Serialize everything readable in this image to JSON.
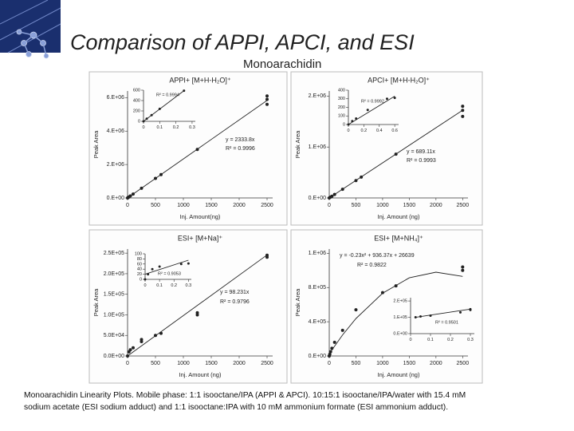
{
  "slide_title": "Comparison of APPI, APCI, and ESI",
  "subtitle": "Monoarachidin",
  "caption": [
    "Monoarachidin Linearity Plots. Mobile phase: 1:1 isooctane/IPA (APPI & APCI). 10:15:1 isooctane/IPA/water with 15.4 mM",
    "sodium acetate (ESI sodium adduct) and 1:1 isooctane:IPA with 10 mM ammonium formate (ESI ammonium adduct)."
  ],
  "chart_data": [
    {
      "type": "scatter",
      "title": "APPI+ [M+H-H₂O]⁺",
      "xlabel": "Inj. Amount(ng)",
      "ylabel": "Peak Area",
      "xlim": [
        0,
        2600
      ],
      "ylim": [
        0,
        6400000
      ],
      "xticks": [
        0,
        500,
        1000,
        1500,
        2000,
        2500
      ],
      "yticks": [
        {
          "value": 0,
          "label": "0.E+00"
        },
        {
          "value": 2000000,
          "label": "2.E+06"
        },
        {
          "value": 4000000,
          "label": "4.E+06"
        },
        {
          "value": 6000000,
          "label": "6.E+06"
        }
      ],
      "annotations": [
        "y = 2333.8x",
        "R² = 0.9996"
      ],
      "series": [
        {
          "style": "points",
          "color": "#222222",
          "x": [
            0,
            10,
            25,
            50,
            100,
            250,
            500,
            600,
            1250,
            2500,
            2500,
            2500
          ],
          "values": [
            0,
            23000,
            58000,
            120000,
            230000,
            580000,
            1170000,
            1400000,
            2900000,
            5600000,
            5900000,
            6100000
          ]
        },
        {
          "style": "line",
          "color": "#222222",
          "x": [
            0,
            2500
          ],
          "values": [
            0,
            5834500
          ]
        }
      ],
      "inset": {
        "xlim": [
          0,
          0.32
        ],
        "ylim": [
          0,
          600
        ],
        "xticks": [
          0,
          0.1,
          0.2,
          0.3
        ],
        "yticks": [
          0,
          200,
          400,
          600
        ],
        "annotations": [
          "R² = 0.9994"
        ],
        "series": [
          {
            "style": "points",
            "color": "#222222",
            "x": [
              0,
              0.02,
              0.05,
              0.1,
              0.25
            ],
            "values": [
              0,
              50,
              120,
              240,
              590
            ]
          },
          {
            "style": "line",
            "color": "#222222",
            "x": [
              0,
              0.25
            ],
            "values": [
              0,
              590
            ]
          }
        ]
      }
    },
    {
      "type": "scatter",
      "title": "APCI+ [M+H-H₂O]⁺",
      "xlabel": "Inj. Amount (ng)",
      "ylabel": "Peak Area",
      "xlim": [
        0,
        2600
      ],
      "ylim": [
        0,
        2100000
      ],
      "xticks": [
        0,
        500,
        1000,
        1500,
        2000,
        2500
      ],
      "yticks": [
        {
          "value": 0,
          "label": "0.E+00"
        },
        {
          "value": 1000000,
          "label": "1.E+06"
        },
        {
          "value": 2000000,
          "label": "2.E+06"
        }
      ],
      "annotations": [
        "y = 689.11x",
        "R² = 0.9993"
      ],
      "series": [
        {
          "style": "points",
          "color": "#222222",
          "x": [
            0,
            25,
            50,
            100,
            250,
            500,
            600,
            1250,
            2500,
            2500,
            2500
          ],
          "values": [
            0,
            17000,
            34000,
            69000,
            170000,
            340000,
            410000,
            860000,
            1600000,
            1720000,
            1800000
          ]
        },
        {
          "style": "line",
          "color": "#222222",
          "x": [
            0,
            2500
          ],
          "values": [
            0,
            1722775
          ]
        }
      ],
      "inset": {
        "xlim": [
          0,
          0.65
        ],
        "ylim": [
          0,
          400
        ],
        "xticks": [
          0,
          0.2,
          0.4,
          0.6
        ],
        "yticks": [
          0,
          100,
          200,
          300,
          400
        ],
        "annotations": [
          "R² = 0.9992"
        ],
        "series": [
          {
            "style": "points",
            "color": "#222222",
            "x": [
              0,
              0.05,
              0.1,
              0.25,
              0.5,
              0.6
            ],
            "values": [
              0,
              40,
              70,
              170,
              300,
              310
            ]
          },
          {
            "style": "line",
            "color": "#222222",
            "x": [
              0,
              0.6
            ],
            "values": [
              0,
              330
            ]
          }
        ]
      }
    },
    {
      "type": "scatter",
      "title": "ESI+ [M+Na]⁺",
      "xlabel": "Inj. Amount (ng)",
      "ylabel": "Peak Area",
      "xlim": [
        0,
        2600
      ],
      "ylim": [
        0,
        260000
      ],
      "xticks": [
        0,
        500,
        1000,
        1500,
        2000,
        2500
      ],
      "yticks": [
        {
          "value": 0,
          "label": "0.0E+00"
        },
        {
          "value": 50000,
          "label": "5.0E+04"
        },
        {
          "value": 100000,
          "label": "1.0E+05"
        },
        {
          "value": 150000,
          "label": "1.5E+05"
        },
        {
          "value": 200000,
          "label": "2.0E+05"
        },
        {
          "value": 250000,
          "label": "2.5E+05"
        }
      ],
      "annotations": [
        "y = 98.231x",
        "R² = 0.9796"
      ],
      "series": [
        {
          "style": "points",
          "color": "#222222",
          "x": [
            0,
            25,
            50,
            100,
            250,
            250,
            500,
            600,
            1250,
            1250,
            2500,
            2500
          ],
          "values": [
            0,
            10000,
            15000,
            20000,
            35000,
            40000,
            50000,
            55000,
            100000,
            105000,
            240000,
            245000
          ]
        },
        {
          "style": "line",
          "color": "#222222",
          "x": [
            0,
            2500
          ],
          "values": [
            0,
            245578
          ]
        }
      ],
      "inset": {
        "xlim": [
          0,
          0.32
        ],
        "ylim": [
          0,
          100
        ],
        "xticks": [
          0,
          0.1,
          0.2,
          0.3
        ],
        "yticks": [
          0,
          20,
          40,
          60,
          80,
          100
        ],
        "annotations": [
          "R² = 0.9053"
        ],
        "series": [
          {
            "style": "points",
            "color": "#222222",
            "x": [
              0,
              0.02,
              0.05,
              0.1,
              0.25,
              0.3
            ],
            "values": [
              0,
              20,
              40,
              50,
              60,
              62
            ]
          },
          {
            "style": "line",
            "color": "#222222",
            "x": [
              0,
              0.3
            ],
            "values": [
              20,
              75
            ]
          }
        ]
      }
    },
    {
      "type": "scatter",
      "title": "ESI+ [M+NH₄]⁺",
      "xlabel": "Inj. Amount (ng)",
      "ylabel": "Peak Area",
      "xlim": [
        0,
        2600
      ],
      "ylim": [
        0,
        1250000
      ],
      "xticks": [
        0,
        500,
        1000,
        1500,
        2000,
        2500
      ],
      "yticks": [
        {
          "value": 0,
          "label": "0.E+00"
        },
        {
          "value": 400000,
          "label": "4.E+05"
        },
        {
          "value": 800000,
          "label": "8.E+05"
        },
        {
          "value": 1200000,
          "label": "1.E+06"
        }
      ],
      "annotations": [
        "y = -0.23x² + 936.37x + 26639",
        "R² = 0.9822"
      ],
      "series": [
        {
          "style": "points",
          "color": "#222222",
          "x": [
            0,
            10,
            25,
            50,
            100,
            250,
            500,
            1000,
            1250,
            2500,
            2500
          ],
          "values": [
            0,
            20000,
            50000,
            90000,
            160000,
            300000,
            540000,
            740000,
            820000,
            1000000,
            1040000
          ]
        },
        {
          "style": "line",
          "color": "#222222",
          "x": [
            0,
            250,
            500,
            1000,
            1500,
            2000,
            2500
          ],
          "values": [
            26639,
            246356,
            437324,
            733009,
            913694,
            979379,
            930064
          ]
        }
      ],
      "inset": {
        "xlim": [
          0,
          0.32
        ],
        "ylim": [
          0,
          220000
        ],
        "xticks": [
          0,
          0.1,
          0.2,
          0.3
        ],
        "yticks": [
          {
            "value": 0,
            "label": "0.E+00"
          },
          {
            "value": 100000,
            "label": "1.E+05"
          },
          {
            "value": 200000,
            "label": "2.E+05"
          }
        ],
        "annotations": [
          "R² = 0.9501"
        ],
        "series": [
          {
            "style": "points",
            "color": "#222222",
            "x": [
              0.025,
              0.05,
              0.1,
              0.25,
              0.3,
              0.3
            ],
            "values": [
              100000,
              105000,
              110000,
              130000,
              145000,
              150000
            ]
          },
          {
            "style": "line",
            "color": "#222222",
            "x": [
              0.025,
              0.3
            ],
            "values": [
              100000,
              150000
            ]
          }
        ]
      }
    }
  ]
}
